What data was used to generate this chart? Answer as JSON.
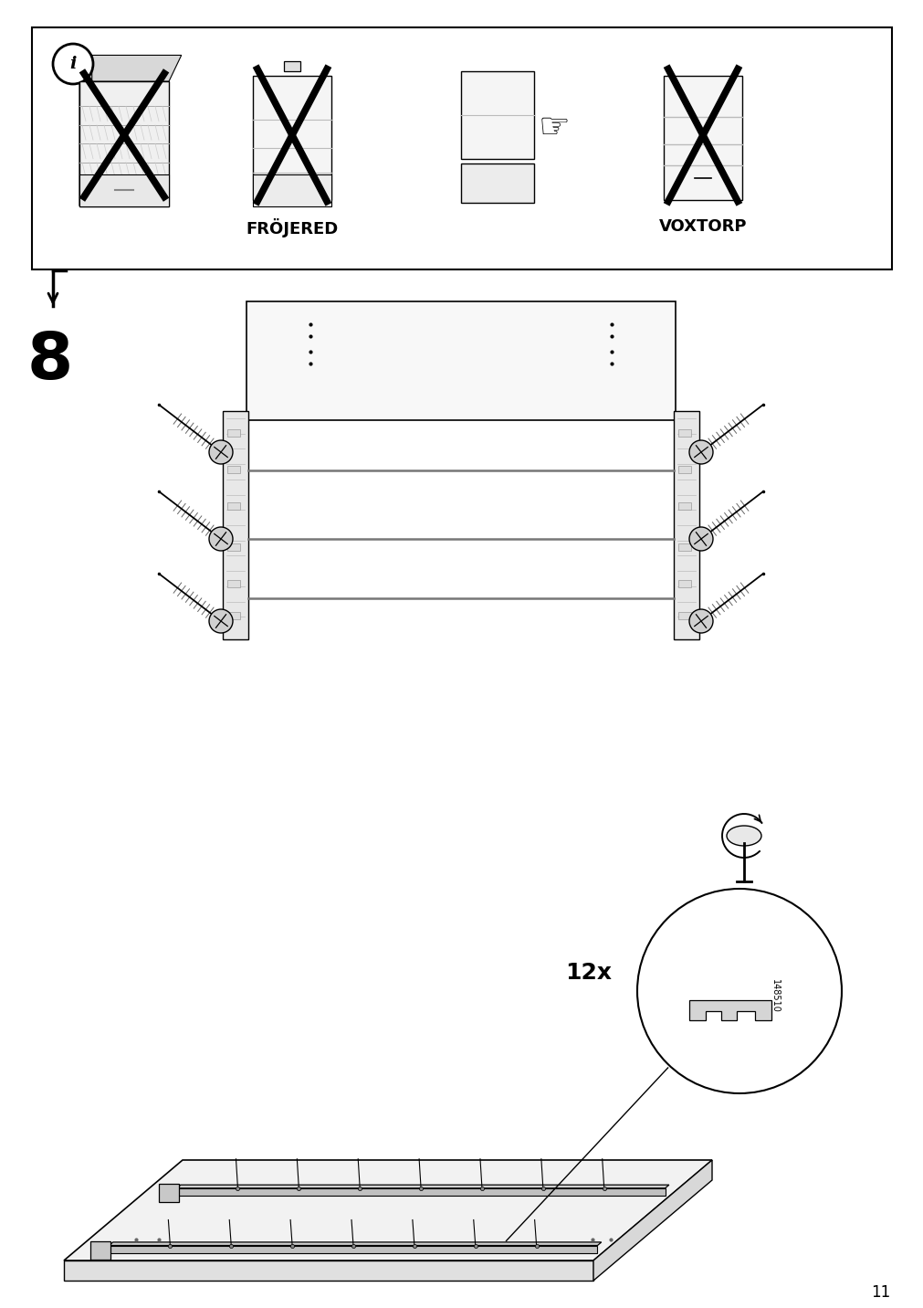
{
  "page_number": "11",
  "background_color": "#ffffff",
  "warning_label1": "FRÖJERED",
  "warning_label2": "VOXTORP",
  "step_number": "8",
  "quantity_label": "12x",
  "part_number": "148510"
}
